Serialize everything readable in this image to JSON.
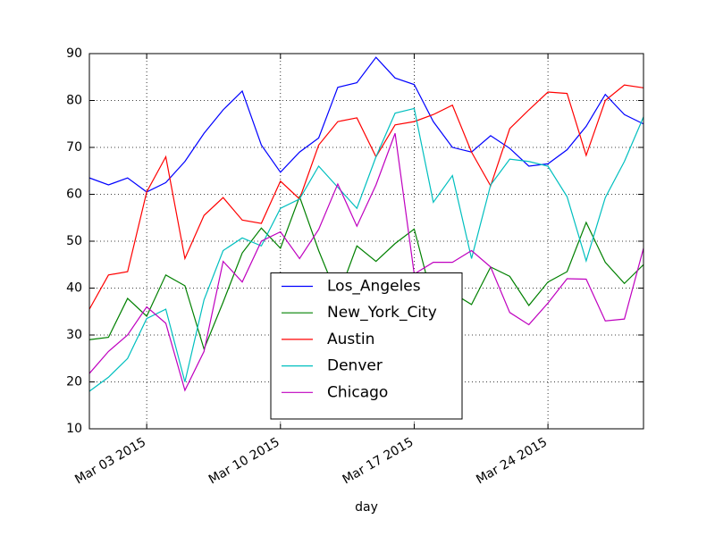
{
  "chart_data": {
    "type": "line",
    "x": [
      "2015-02-28",
      "2015-03-01",
      "2015-03-02",
      "2015-03-03",
      "2015-03-04",
      "2015-03-05",
      "2015-03-06",
      "2015-03-07",
      "2015-03-08",
      "2015-03-09",
      "2015-03-10",
      "2015-03-11",
      "2015-03-12",
      "2015-03-13",
      "2015-03-14",
      "2015-03-15",
      "2015-03-16",
      "2015-03-17",
      "2015-03-18",
      "2015-03-19",
      "2015-03-20",
      "2015-03-21",
      "2015-03-22",
      "2015-03-23",
      "2015-03-24",
      "2015-03-25",
      "2015-03-26",
      "2015-03-27",
      "2015-03-28",
      "2015-03-29"
    ],
    "series": [
      {
        "name": "Los_Angeles",
        "color": "#0000ff",
        "values": [
          63.5,
          62,
          63.5,
          60.5,
          62.5,
          67,
          73,
          78,
          82,
          70.5,
          64.7,
          69,
          72,
          82.8,
          83.8,
          89.2,
          84.8,
          83.4,
          75.5,
          70,
          69,
          72.5,
          69.8,
          66,
          66.5,
          69.5,
          74.5,
          81.3,
          77,
          75
        ]
      },
      {
        "name": "New_York_City",
        "color": "#008000",
        "values": [
          29,
          29.5,
          37.8,
          34,
          42.8,
          40.5,
          27,
          37,
          47.5,
          52.8,
          48.5,
          59.5,
          48,
          38,
          49,
          45.7,
          49.5,
          52.6,
          37,
          39,
          36.5,
          44.5,
          42.5,
          36.3,
          41.3,
          43.5,
          54,
          45.5,
          41,
          45
        ]
      },
      {
        "name": "Austin",
        "color": "#ff0000",
        "values": [
          35.5,
          42.8,
          43.5,
          60.5,
          68,
          46.3,
          55.5,
          59.3,
          54.5,
          53.8,
          62.8,
          59,
          70.5,
          75.5,
          76.3,
          68,
          74.8,
          75.5,
          77,
          79,
          69,
          61.8,
          74,
          78,
          81.8,
          81.5,
          68.3,
          80,
          83.3,
          82.7
        ]
      },
      {
        "name": "Denver",
        "color": "#00bfbf",
        "values": [
          18,
          21,
          25,
          33.5,
          35.5,
          20,
          37.5,
          48,
          50.7,
          49,
          57,
          59,
          66,
          61.5,
          57,
          68,
          77.3,
          78.3,
          58.3,
          64,
          46.3,
          62,
          67.5,
          67,
          66,
          59.5,
          45.8,
          59.3,
          67,
          76.5
        ]
      },
      {
        "name": "Chicago",
        "color": "#bf00bf",
        "values": [
          21.8,
          26.5,
          30,
          36,
          32.5,
          18.2,
          26.5,
          45.7,
          41.3,
          50,
          52,
          46.3,
          52.5,
          62.2,
          53.2,
          62,
          73,
          43,
          45.5,
          45.5,
          48,
          44.5,
          34.8,
          32.2,
          36.8,
          42,
          41.9,
          33,
          33.4,
          48.5
        ]
      }
    ],
    "xlabel": "day",
    "xlim": [
      "2015-02-28",
      "2015-03-29"
    ],
    "xticks": [
      {
        "value": "2015-03-03",
        "label": "Mar 03 2015"
      },
      {
        "value": "2015-03-10",
        "label": "Mar 10 2015"
      },
      {
        "value": "2015-03-17",
        "label": "Mar 17 2015"
      },
      {
        "value": "2015-03-24",
        "label": "Mar 24 2015"
      }
    ],
    "ylim": [
      10,
      90
    ],
    "yticks": [
      10,
      20,
      30,
      40,
      50,
      60,
      70,
      80,
      90
    ],
    "grid": true,
    "legend": "lower center"
  }
}
